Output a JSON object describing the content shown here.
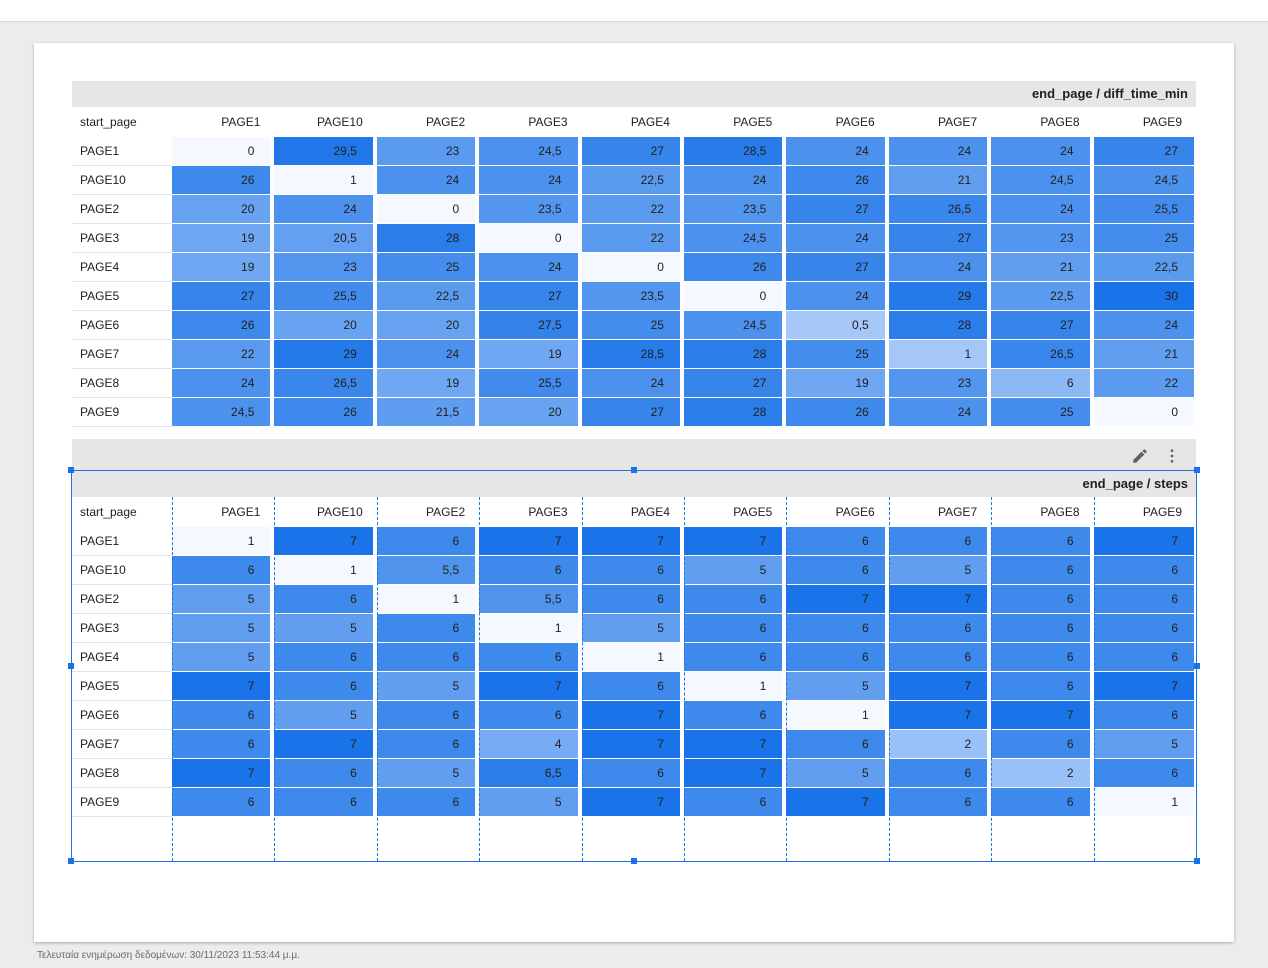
{
  "columns": [
    "PAGE1",
    "PAGE10",
    "PAGE2",
    "PAGE3",
    "PAGE4",
    "PAGE5",
    "PAGE6",
    "PAGE7",
    "PAGE8",
    "PAGE9"
  ],
  "row_dimension_label": "start_page",
  "tables": [
    {
      "title": "end_page / diff_time_min",
      "rows": [
        {
          "label": "PAGE1",
          "values": [
            "0",
            "29,5",
            "23",
            "24,5",
            "27",
            "28,5",
            "24",
            "24",
            "24",
            "27"
          ],
          "intensity": [
            0,
            0.95,
            0.55,
            0.65,
            0.8,
            0.9,
            0.65,
            0.65,
            0.65,
            0.8
          ]
        },
        {
          "label": "PAGE10",
          "values": [
            "26",
            "1",
            "24",
            "24",
            "22,5",
            "24",
            "26",
            "21",
            "24,5",
            "24,5"
          ],
          "intensity": [
            0.75,
            0,
            0.65,
            0.65,
            0.55,
            0.65,
            0.75,
            0.5,
            0.65,
            0.65
          ]
        },
        {
          "label": "PAGE2",
          "values": [
            "20",
            "24",
            "0",
            "23,5",
            "22",
            "23,5",
            "27",
            "26,5",
            "24",
            "25,5"
          ],
          "intensity": [
            0.45,
            0.65,
            0,
            0.6,
            0.55,
            0.6,
            0.8,
            0.78,
            0.65,
            0.72
          ]
        },
        {
          "label": "PAGE3",
          "values": [
            "19",
            "20,5",
            "28",
            "0",
            "22",
            "24,5",
            "24",
            "27",
            "23",
            "25"
          ],
          "intensity": [
            0.4,
            0.48,
            0.88,
            0,
            0.55,
            0.65,
            0.65,
            0.8,
            0.6,
            0.7
          ]
        },
        {
          "label": "PAGE4",
          "values": [
            "19",
            "23",
            "25",
            "24",
            "0",
            "26",
            "27",
            "24",
            "21",
            "22,5"
          ],
          "intensity": [
            0.4,
            0.6,
            0.7,
            0.65,
            0,
            0.75,
            0.8,
            0.65,
            0.5,
            0.55
          ]
        },
        {
          "label": "PAGE5",
          "values": [
            "27",
            "25,5",
            "22,5",
            "27",
            "23,5",
            "0",
            "24",
            "29",
            "22,5",
            "30"
          ],
          "intensity": [
            0.8,
            0.72,
            0.55,
            0.8,
            0.6,
            0,
            0.65,
            0.92,
            0.55,
            1.0
          ]
        },
        {
          "label": "PAGE6",
          "values": [
            "26",
            "20",
            "20",
            "27,5",
            "25",
            "24,5",
            "0,5",
            "28",
            "27",
            "24"
          ],
          "intensity": [
            0.75,
            0.45,
            0.45,
            0.82,
            0.7,
            0.65,
            0.02,
            0.88,
            0.8,
            0.65
          ]
        },
        {
          "label": "PAGE7",
          "values": [
            "22",
            "29",
            "24",
            "19",
            "28,5",
            "28",
            "25",
            "1",
            "26,5",
            "21"
          ],
          "intensity": [
            0.55,
            0.92,
            0.65,
            0.4,
            0.9,
            0.88,
            0.7,
            0.03,
            0.78,
            0.5
          ]
        },
        {
          "label": "PAGE8",
          "values": [
            "24",
            "26,5",
            "19",
            "25,5",
            "24",
            "27",
            "19",
            "23",
            "6",
            "22"
          ],
          "intensity": [
            0.65,
            0.78,
            0.4,
            0.72,
            0.65,
            0.8,
            0.4,
            0.6,
            0.2,
            0.55
          ]
        },
        {
          "label": "PAGE9",
          "values": [
            "24,5",
            "26",
            "21,5",
            "20",
            "27",
            "28",
            "26",
            "24",
            "25",
            "0"
          ],
          "intensity": [
            0.65,
            0.75,
            0.52,
            0.45,
            0.8,
            0.88,
            0.75,
            0.65,
            0.7,
            0
          ]
        }
      ]
    },
    {
      "title": "end_page / steps",
      "rows": [
        {
          "label": "PAGE1",
          "values": [
            "1",
            "7",
            "6",
            "7",
            "7",
            "7",
            "6",
            "6",
            "6",
            "7"
          ],
          "intensity": [
            0,
            1,
            0.75,
            1,
            1,
            1,
            0.75,
            0.75,
            0.75,
            1
          ]
        },
        {
          "label": "PAGE10",
          "values": [
            "6",
            "1",
            "5,5",
            "6",
            "6",
            "5",
            "6",
            "5",
            "6",
            "6"
          ],
          "intensity": [
            0.75,
            0,
            0.62,
            0.75,
            0.75,
            0.5,
            0.75,
            0.5,
            0.75,
            0.75
          ]
        },
        {
          "label": "PAGE2",
          "values": [
            "5",
            "6",
            "1",
            "5,5",
            "6",
            "6",
            "7",
            "7",
            "6",
            "6"
          ],
          "intensity": [
            0.5,
            0.75,
            0,
            0.62,
            0.75,
            0.75,
            1,
            1,
            0.75,
            0.75
          ]
        },
        {
          "label": "PAGE3",
          "values": [
            "5",
            "5",
            "6",
            "1",
            "5",
            "6",
            "6",
            "6",
            "6",
            "6"
          ],
          "intensity": [
            0.5,
            0.5,
            0.75,
            0,
            0.5,
            0.75,
            0.75,
            0.75,
            0.75,
            0.75
          ]
        },
        {
          "label": "PAGE4",
          "values": [
            "5",
            "6",
            "6",
            "6",
            "1",
            "6",
            "6",
            "6",
            "6",
            "6"
          ],
          "intensity": [
            0.5,
            0.75,
            0.75,
            0.75,
            0,
            0.75,
            0.75,
            0.75,
            0.75,
            0.75
          ]
        },
        {
          "label": "PAGE5",
          "values": [
            "7",
            "6",
            "5",
            "7",
            "6",
            "1",
            "5",
            "7",
            "6",
            "7"
          ],
          "intensity": [
            1,
            0.75,
            0.5,
            1,
            0.75,
            0,
            0.5,
            1,
            0.75,
            1
          ]
        },
        {
          "label": "PAGE6",
          "values": [
            "6",
            "5",
            "6",
            "6",
            "7",
            "6",
            "1",
            "7",
            "7",
            "6"
          ],
          "intensity": [
            0.75,
            0.5,
            0.75,
            0.75,
            1,
            0.75,
            0,
            1,
            1,
            0.75
          ]
        },
        {
          "label": "PAGE7",
          "values": [
            "6",
            "7",
            "6",
            "4",
            "7",
            "7",
            "6",
            "2",
            "6",
            "5"
          ],
          "intensity": [
            0.75,
            1,
            0.75,
            0.35,
            1,
            1,
            0.75,
            0.1,
            0.75,
            0.5
          ]
        },
        {
          "label": "PAGE8",
          "values": [
            "7",
            "6",
            "5",
            "6,5",
            "6",
            "7",
            "5",
            "6",
            "2",
            "6"
          ],
          "intensity": [
            1,
            0.75,
            0.5,
            0.88,
            0.75,
            1,
            0.5,
            0.75,
            0.1,
            0.75
          ]
        },
        {
          "label": "PAGE9",
          "values": [
            "6",
            "6",
            "6",
            "5",
            "7",
            "6",
            "7",
            "6",
            "6",
            "1"
          ],
          "intensity": [
            0.75,
            0.75,
            0.75,
            0.5,
            1,
            0.75,
            1,
            0.75,
            0.75,
            0
          ]
        }
      ]
    }
  ],
  "toolbar": {
    "edit_icon": "pencil-icon",
    "menu_icon": "more-vert-icon"
  },
  "colors": {
    "heat_low": "#f5f9ff",
    "heat_high": "#1a73e8",
    "selection": "#1a73e8"
  },
  "footer": {
    "last_update": "Τελευταία ενημέρωση δεδομένων: 30/11/2023 11:53:44 μ.μ."
  }
}
